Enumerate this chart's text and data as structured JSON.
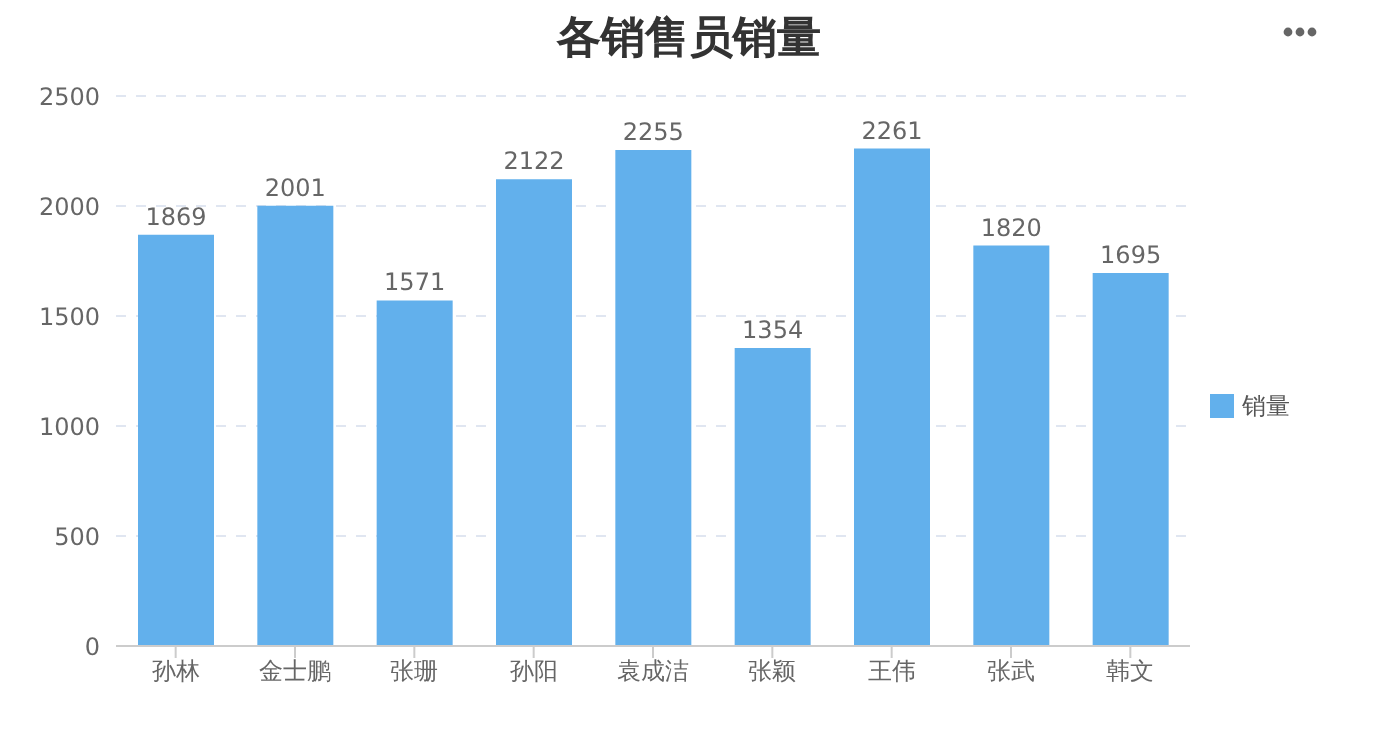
{
  "chart_data": {
    "type": "bar",
    "title": "各销售员销量",
    "categories": [
      "孙林",
      "金士鹏",
      "张珊",
      "孙阳",
      "袁成洁",
      "张颖",
      "王伟",
      "张武",
      "韩文"
    ],
    "series": [
      {
        "name": "销量",
        "color": "#62b0ec",
        "values": [
          1869,
          2001,
          1571,
          2122,
          2255,
          1354,
          2261,
          1820,
          1695
        ]
      }
    ],
    "ylim": [
      0,
      2500
    ],
    "yticks": [
      0,
      500,
      1000,
      1500,
      2000,
      2500
    ],
    "grid": "y",
    "legend": "right",
    "data_labels": true
  }
}
